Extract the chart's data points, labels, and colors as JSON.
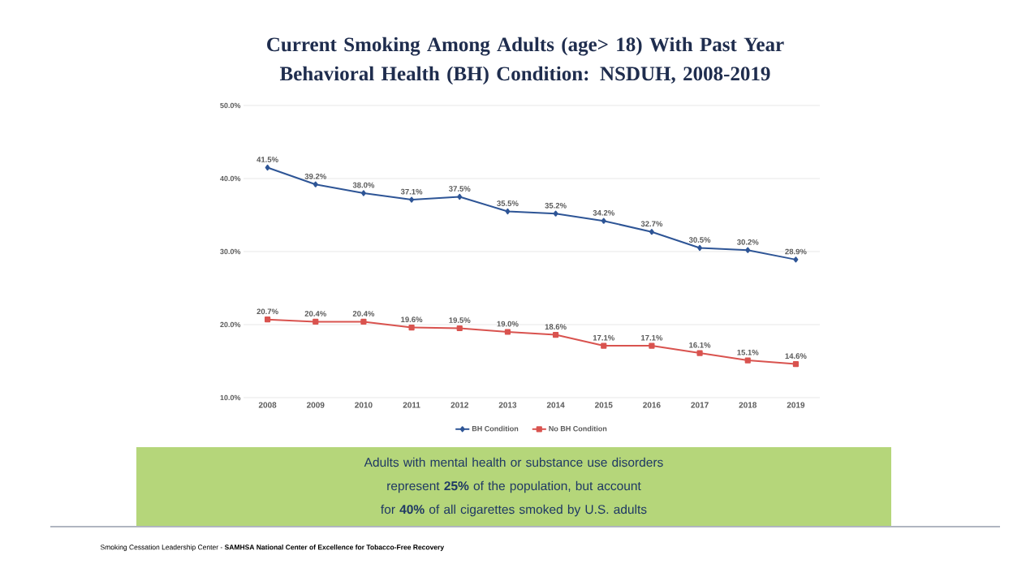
{
  "chart_data": {
    "type": "line",
    "title": "Current Smoking Among Adults (age> 18) With Past Year Behavioral Health (BH) Condition: NSDUH, 2008-2019",
    "categories": [
      "2008",
      "2009",
      "2010",
      "2011",
      "2012",
      "2013",
      "2014",
      "2015",
      "2016",
      "2017",
      "2018",
      "2019"
    ],
    "series": [
      {
        "name": "BH Condition",
        "color": "#2e5596",
        "marker": "diamond",
        "values": [
          41.5,
          39.2,
          38.0,
          37.1,
          37.5,
          35.5,
          35.2,
          34.2,
          32.7,
          30.5,
          30.2,
          28.9
        ],
        "value_labels": [
          "41.5%",
          "39.2%",
          "38.0%",
          "37.1%",
          "37.5%",
          "35.5%",
          "35.2%",
          "34.2%",
          "32.7%",
          "30.5%",
          "30.2%",
          "28.9%"
        ]
      },
      {
        "name": "No BH Condition",
        "color": "#d9534f",
        "marker": "square",
        "values": [
          20.7,
          20.4,
          20.4,
          19.6,
          19.5,
          19.0,
          18.6,
          17.1,
          17.1,
          16.1,
          15.1,
          14.6
        ],
        "value_labels": [
          "20.7%",
          "20.4%",
          "20.4%",
          "19.6%",
          "19.5%",
          "19.0%",
          "18.6%",
          "17.1%",
          "17.1%",
          "16.1%",
          "15.1%",
          "14.6%"
        ]
      }
    ],
    "ylim": [
      10,
      50
    ],
    "yticks": [
      {
        "value": 10,
        "label": "10.0%"
      },
      {
        "value": 20,
        "label": "20.0%"
      },
      {
        "value": 30,
        "label": "30.0%"
      },
      {
        "value": 40,
        "label": "40.0%"
      },
      {
        "value": 50,
        "label": "50.0%"
      }
    ],
    "grid": "y",
    "legend": "bottom",
    "line_style": "solid",
    "annotations": [
      "Adults with mental health or substance use disorders represent **25%** of the population, but account for **40%** of all cigarettes smoked by U.S. adults",
      "Smoking Cessation Leadership Center - **SAMHSA National Center of Excellence for Tobacco-Free Recovery**"
    ]
  }
}
